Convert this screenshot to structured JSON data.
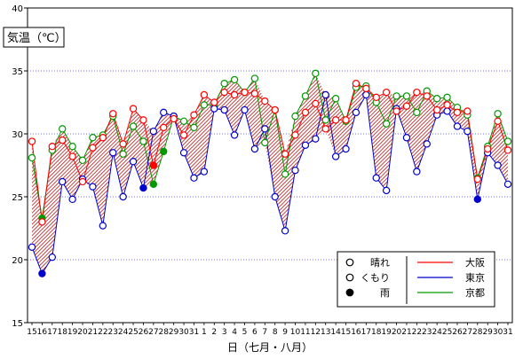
{
  "chart_data": {
    "type": "line",
    "ylabel": "気温（℃）",
    "xlabel": "日（七月・八月）",
    "ylim": [
      15,
      40
    ],
    "yticks": [
      15,
      20,
      25,
      30,
      35,
      40
    ],
    "grid": true,
    "x": [
      "15",
      "16",
      "17",
      "18",
      "19",
      "20",
      "21",
      "22",
      "23",
      "24",
      "25",
      "26",
      "27",
      "28",
      "29",
      "30",
      "31",
      "1",
      "2",
      "3",
      "4",
      "5",
      "6",
      "7",
      "8",
      "9",
      "10",
      "11",
      "12",
      "13",
      "14",
      "15",
      "16",
      "17",
      "18",
      "19",
      "20",
      "21",
      "22",
      "23",
      "24",
      "25",
      "26",
      "27",
      "28",
      "29",
      "30",
      "31"
    ],
    "x_label_colors": [
      "#000000",
      "#000000",
      "#000000",
      "#cc0000",
      "#cc0000",
      "#000000",
      "#000000",
      "#000000",
      "#000000",
      "#000000",
      "#0000cc",
      "#cc0000",
      "#000000",
      "#000000",
      "#000000",
      "#000000",
      "#000000",
      "#0000cc",
      "#cc0000",
      "#000000",
      "#000000",
      "#000000",
      "#000000",
      "#000000",
      "#0000cc",
      "#cc0000",
      "#000000",
      "#000000",
      "#000000",
      "#000000",
      "#000000",
      "#0000cc",
      "#cc0000",
      "#000000",
      "#000000",
      "#000000",
      "#000000",
      "#0000cc",
      "#cc0000",
      "#000000",
      "#000000",
      "#000000",
      "#000000",
      "#000000",
      "#0000cc",
      "#cc0000",
      "#000000",
      "#000000"
    ],
    "series": [
      {
        "name": "大阪",
        "color": "#ff0000",
        "values": [
          29.4,
          23.0,
          29.0,
          29.5,
          28.2,
          26.2,
          28.9,
          29.7,
          31.6,
          29.2,
          32.0,
          31.1,
          27.5,
          30.5,
          31.2,
          29.9,
          31.5,
          33.1,
          32.5,
          33.3,
          33.1,
          33.3,
          33.2,
          32.6,
          31.9,
          28.4,
          29.9,
          31.7,
          32.4,
          30.4,
          31.1,
          31.1,
          34.0,
          33.6,
          32.9,
          33.3,
          31.8,
          32.2,
          33.3,
          33.0,
          31.9,
          32.3,
          31.7,
          31.8,
          26.4,
          28.8,
          31.0,
          28.7
        ],
        "weather": [
          "c",
          "c",
          "c",
          "c",
          "c",
          "c",
          "c",
          "c",
          "c",
          "c",
          "c",
          "c",
          "r",
          "c",
          "c",
          "c",
          "c",
          "c",
          "c",
          "c",
          "c",
          "c",
          "c",
          "c",
          "c",
          "c",
          "c",
          "c",
          "c",
          "c",
          "c",
          "c",
          "c",
          "c",
          "c",
          "c",
          "c",
          "c",
          "c",
          "c",
          "c",
          "c",
          "c",
          "c",
          "c",
          "c",
          "c",
          "c"
        ]
      },
      {
        "name": "東京",
        "color": "#0000cc",
        "values": [
          21.0,
          18.9,
          20.2,
          26.2,
          24.8,
          26.4,
          25.8,
          22.7,
          28.5,
          25.0,
          27.8,
          25.7,
          30.2,
          31.7,
          31.4,
          28.5,
          26.5,
          27.0,
          32.0,
          31.9,
          29.9,
          31.9,
          28.8,
          30.4,
          25.0,
          22.3,
          27.1,
          29.1,
          29.6,
          33.1,
          28.2,
          28.8,
          31.7,
          33.1,
          26.5,
          25.5,
          32.0,
          29.7,
          27.0,
          29.2,
          31.5,
          31.8,
          30.6,
          30.2,
          24.8,
          28.5,
          27.5,
          26.0
        ],
        "weather": [
          "s",
          "r",
          "s",
          "s",
          "s",
          "s",
          "s",
          "s",
          "s",
          "s",
          "s",
          "r",
          "s",
          "s",
          "s",
          "s",
          "s",
          "s",
          "s",
          "s",
          "s",
          "s",
          "s",
          "s",
          "s",
          "s",
          "s",
          "s",
          "s",
          "s",
          "s",
          "s",
          "s",
          "s",
          "s",
          "s",
          "s",
          "s",
          "s",
          "s",
          "s",
          "s",
          "s",
          "s",
          "r",
          "s",
          "s",
          "s"
        ]
      },
      {
        "name": "京都",
        "color": "#009900",
        "values": [
          28.1,
          23.3,
          28.7,
          30.4,
          29.0,
          27.9,
          29.7,
          29.9,
          31.4,
          28.4,
          30.6,
          29.4,
          26.0,
          28.6,
          31.4,
          31.0,
          30.5,
          32.3,
          32.3,
          34.0,
          34.3,
          33.3,
          34.4,
          29.3,
          31.9,
          26.8,
          31.4,
          33.0,
          34.8,
          31.1,
          32.8,
          31.0,
          33.7,
          33.8,
          32.5,
          30.8,
          33.0,
          33.0,
          31.7,
          33.4,
          32.8,
          32.9,
          32.1,
          31.5,
          26.5,
          29.0,
          31.6,
          29.4
        ],
        "weather": [
          "c",
          "r",
          "c",
          "c",
          "c",
          "c",
          "c",
          "c",
          "c",
          "c",
          "c",
          "c",
          "r",
          "r",
          "c",
          "c",
          "c",
          "c",
          "c",
          "c",
          "c",
          "c",
          "c",
          "c",
          "c",
          "c",
          "c",
          "c",
          "c",
          "c",
          "c",
          "c",
          "c",
          "c",
          "c",
          "c",
          "c",
          "c",
          "c",
          "c",
          "c",
          "c",
          "c",
          "c",
          "c",
          "c",
          "c",
          "c"
        ]
      }
    ],
    "legend": {
      "position": "bottom-right",
      "weather_items": [
        {
          "symbol": "s",
          "label": "晴れ"
        },
        {
          "symbol": "c",
          "label": "くもり"
        },
        {
          "symbol": "r",
          "label": "雨"
        }
      ],
      "series_items": [
        "大阪",
        "東京",
        "京都"
      ]
    }
  }
}
